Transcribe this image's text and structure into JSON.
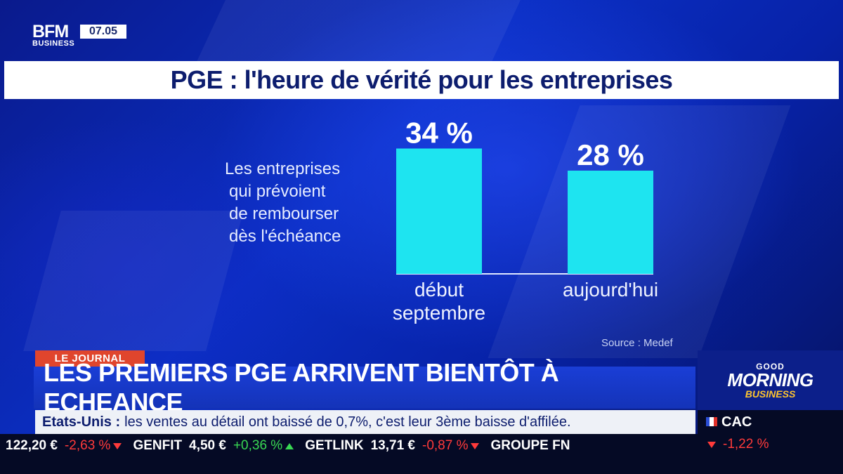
{
  "broadcast": {
    "logo_main": "BFM",
    "logo_sub": "BUSINESS",
    "clock": "07.05"
  },
  "chart_title": "PGE : l'heure de vérité pour les entreprises",
  "chart_data": {
    "type": "bar",
    "title": "PGE : l'heure de vérité pour les entreprises",
    "description_lines": [
      "Les entreprises",
      "qui prévoient",
      "de rembourser",
      "dès l'échéance"
    ],
    "categories": [
      [
        "début",
        "septembre"
      ],
      [
        "aujourd'hui"
      ]
    ],
    "values": [
      34,
      28
    ],
    "value_labels": [
      "34 %",
      "28 %"
    ],
    "unit": "%",
    "ylim": [
      0,
      40
    ],
    "grid": false,
    "bar_color": "#1ee4f0",
    "source": "Source : Medef"
  },
  "lower_third": {
    "tag": "LE JOURNAL",
    "headline": "LES PREMIERS PGE ARRIVENT BIENTÔT À ECHEANCE",
    "ticker_lead": "Etats-Unis :",
    "ticker_text": "les ventes au détail ont baissé de 0,7%, c'est leur 3ème baisse d'affilée."
  },
  "stocks": [
    {
      "name": "",
      "price": "122,20 €",
      "change": "-2,63 %",
      "direction": "down"
    },
    {
      "name": "GENFIT",
      "price": "4,50 €",
      "change": "+0,36 %",
      "direction": "up"
    },
    {
      "name": "GETLINK",
      "price": "13,71 €",
      "change": "-0,87 %",
      "direction": "down"
    },
    {
      "name": "GROUPE FN",
      "price": "",
      "change": "",
      "direction": ""
    }
  ],
  "show_brand": {
    "line1": "GOOD",
    "line2": "MORNING",
    "line3": "BUSINESS"
  },
  "index": {
    "name": "CAC",
    "change": "-1,22 %",
    "direction": "down"
  },
  "colors": {
    "accent_red": "#e0452d",
    "headline_blue": "#1a3ed6",
    "bar_cyan": "#1ee4f0",
    "down": "#ff3a3a",
    "up": "#39d853"
  }
}
